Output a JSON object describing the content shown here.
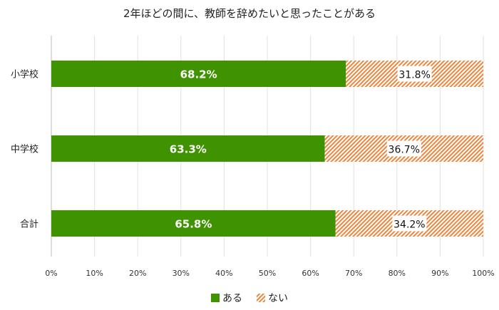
{
  "chart_data": {
    "type": "bar",
    "orientation": "horizontal",
    "stacked": true,
    "title": "2年ほどの間に、教師を辞めたいと思ったことがある",
    "categories": [
      "小学校",
      "中学校",
      "合計"
    ],
    "series": [
      {
        "name": "ある",
        "values": [
          68.2,
          63.3,
          65.8
        ],
        "color": "#3f9200",
        "pattern": "solid"
      },
      {
        "name": "ない",
        "values": [
          31.8,
          36.7,
          34.2
        ],
        "color": "#f07a2a",
        "pattern": "diagonal-hatch"
      }
    ],
    "data_labels": [
      [
        "68.2%",
        "63.3%",
        "65.8%"
      ],
      [
        "31.8%",
        "36.7%",
        "34.2%"
      ]
    ],
    "xlim": [
      0,
      100
    ],
    "xticks": [
      "0%",
      "10%",
      "20%",
      "30%",
      "40%",
      "50%",
      "60%",
      "70%",
      "80%",
      "90%",
      "100%"
    ],
    "grid": true,
    "legend": "bottom"
  }
}
